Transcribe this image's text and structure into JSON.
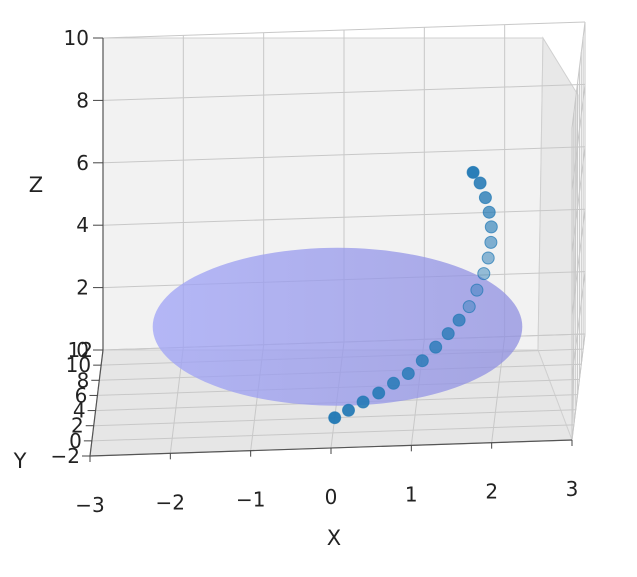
{
  "chart_data": {
    "type": "scatter",
    "projection": "3d",
    "xlabel": "X",
    "ylabel": "Y",
    "zlabel": "Z",
    "xlim": [
      -3,
      3
    ],
    "ylim": [
      -2,
      12
    ],
    "zlim": [
      0,
      10
    ],
    "x_ticks": [
      "−3",
      "−2",
      "−1",
      "0",
      "1",
      "2",
      "3"
    ],
    "y_ticks": [
      "−2",
      "0",
      "2",
      "4",
      "6",
      "8",
      "10",
      "12"
    ],
    "z_ticks": [
      "0",
      "2",
      "4",
      "6",
      "8",
      "10"
    ],
    "grid": true,
    "surface": {
      "shape": "disk",
      "center": [
        0,
        5,
        1
      ],
      "radius": 2.3,
      "color": "#8a8ef0",
      "alpha": 0.75
    },
    "series": [
      {
        "marker": "o",
        "color": "#1f77b4",
        "x": [
          0.0,
          0.17,
          0.35,
          0.54,
          0.72,
          0.9,
          1.07,
          1.23,
          1.38,
          1.51,
          1.63,
          1.72,
          1.8,
          1.85,
          1.88,
          1.88,
          1.85,
          1.8,
          1.73,
          1.64
        ],
        "y": [
          2.0,
          2.1,
          2.3,
          2.6,
          3.0,
          3.4,
          3.8,
          4.3,
          4.8,
          5.3,
          5.8,
          6.3,
          6.8,
          7.2,
          7.6,
          8.0,
          8.3,
          8.6,
          8.9,
          9.1
        ],
        "z": [
          0.0,
          0.2,
          0.4,
          0.6,
          0.8,
          1.0,
          1.3,
          1.6,
          1.9,
          2.2,
          2.5,
          2.9,
          3.3,
          3.7,
          4.1,
          4.5,
          4.9,
          5.3,
          5.7,
          6.0
        ]
      }
    ]
  }
}
